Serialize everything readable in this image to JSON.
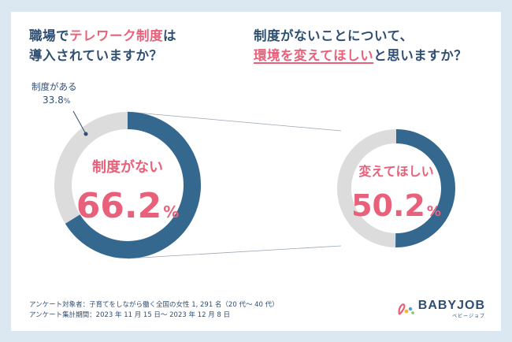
{
  "question1": {
    "line1_prefix": "職場で",
    "line1_highlight": "テレワーク制度",
    "line1_suffix": "は",
    "line2": "導入されていますか？"
  },
  "question2": {
    "line1": "制度がないことについて、",
    "line2_highlight": "環境を変えてほしい",
    "line2_suffix": "と思いますか？"
  },
  "chart_data": [
    {
      "type": "pie",
      "labels": [
        "制度がない",
        "制度がある"
      ],
      "values": [
        66.2,
        33.8
      ],
      "colors": [
        "#35688f",
        "#dcdcdc"
      ],
      "center_label": "制度がない",
      "center_value": "66.2",
      "center_unit": "%",
      "callout_label": "制度がある",
      "callout_value": "33.8",
      "callout_unit": "%"
    },
    {
      "type": "pie",
      "labels": [
        "変えてほしい",
        ""
      ],
      "values": [
        50.2,
        49.8
      ],
      "colors": [
        "#35688f",
        "#dcdcdc"
      ],
      "center_label": "変えてほしい",
      "center_value": "50.2",
      "center_unit": "%"
    }
  ],
  "footer": {
    "line1": "アンケート対象者：子育てをしながら働く全国の女性 1, 291 名（20 代～ 40 代）",
    "line2": "アンケート集計期間：2023 年 11 月 15 日～ 2023 年 12 月 8 日"
  },
  "logo": {
    "text": "BABYJOB",
    "sub": "ベビージョブ"
  },
  "colors": {
    "navy": "#2e4e72",
    "pink": "#e8607a",
    "blue": "#35688f",
    "grey": "#dcdcdc",
    "background": "#dbe8f2"
  }
}
